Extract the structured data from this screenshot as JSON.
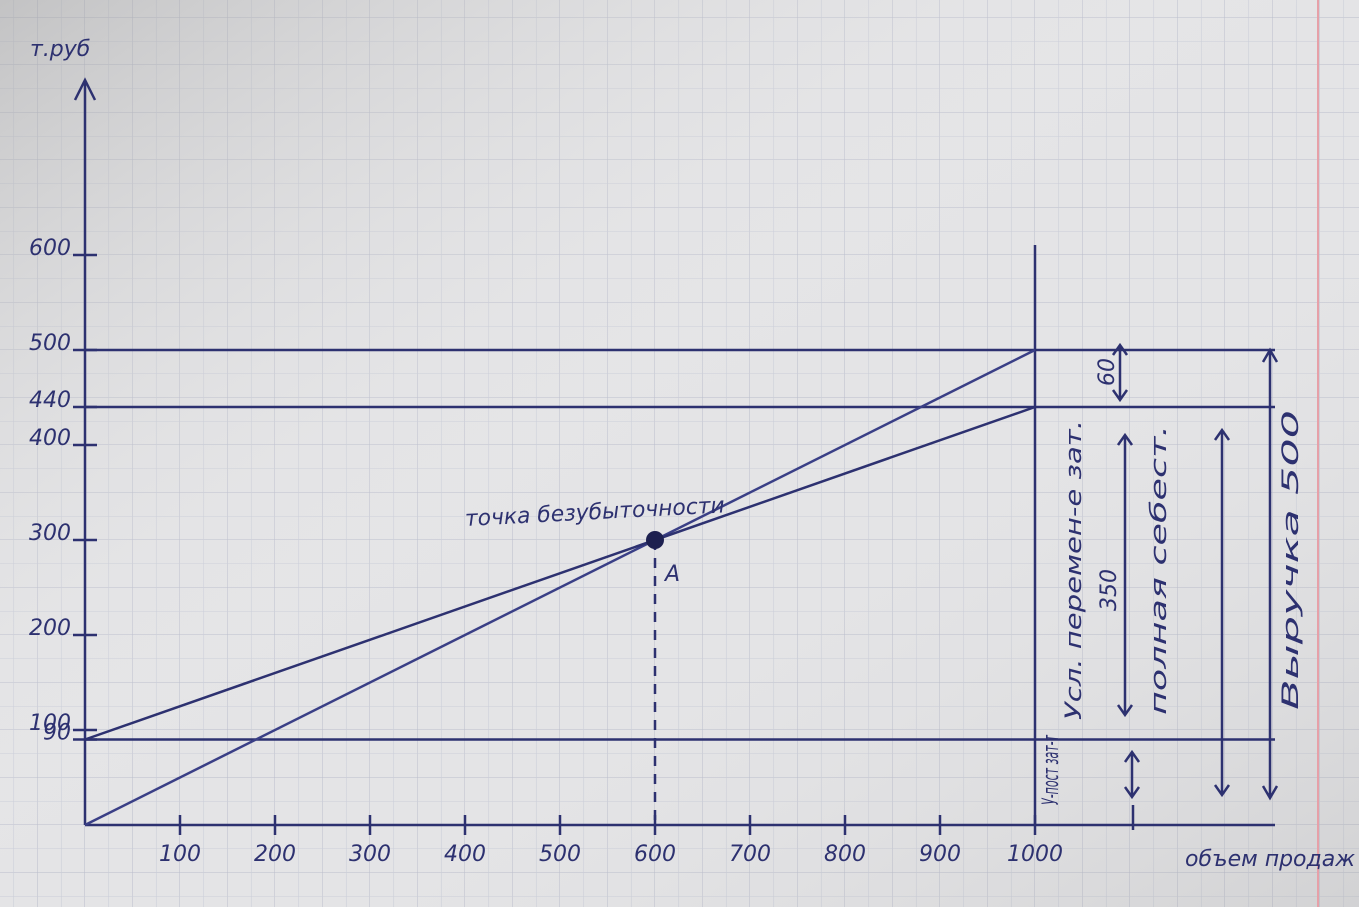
{
  "chart_data": {
    "type": "line",
    "y_label": "т.руб",
    "x_label": "объем продаж",
    "x": [
      0,
      1000
    ],
    "series": [
      {
        "color": "#3a3f86",
        "values": [
          0,
          500
        ]
      },
      {
        "color": "#2d3170",
        "values": [
          90,
          440
        ]
      }
    ],
    "xlim": [
      0,
      1300
    ],
    "ylim": [
      0,
      780
    ],
    "xticks": [
      100,
      200,
      300,
      400,
      500,
      600,
      700,
      800,
      900,
      1000
    ],
    "yticks": [
      90,
      100,
      200,
      300,
      400,
      440,
      500,
      600
    ],
    "hlines": [
      90,
      440,
      500
    ],
    "vlines": [
      1000
    ],
    "break_even": {
      "x": 600,
      "y": 300,
      "label": "A",
      "text": "точка безубыточности"
    },
    "annotations": [
      "60",
      "Усл. перемен-е зат.",
      "350",
      "полная себест.",
      "Выручка 500",
      "У-пост зат-т"
    ]
  }
}
